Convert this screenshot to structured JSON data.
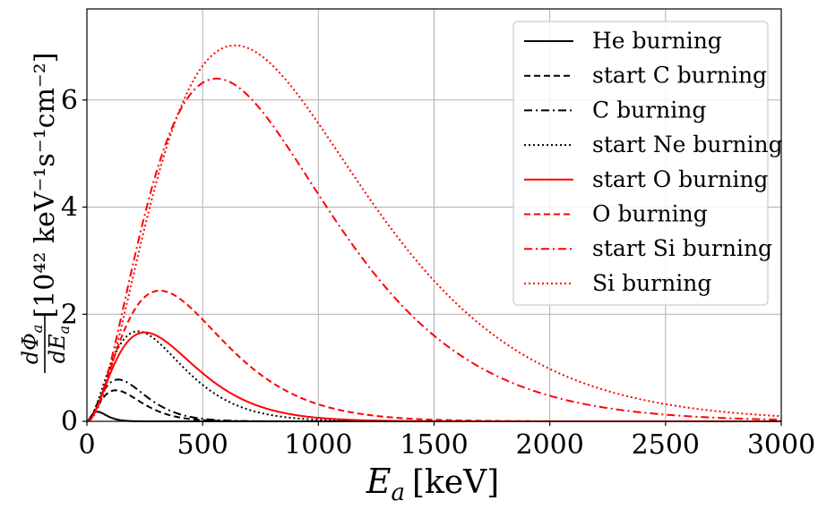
{
  "chart_data": {
    "type": "line",
    "xlabel": {
      "symbol": "E",
      "sub": "a",
      "unit": "[keV]"
    },
    "ylabel": {
      "num": "dΦ",
      "num_sub": "a",
      "den": "dE",
      "den_sub": "a",
      "unit": "[10⁴² keV⁻¹s⁻¹cm⁻²]"
    },
    "xlim": [
      0,
      3000
    ],
    "ylim": [
      0,
      7.7
    ],
    "x_ticks": [
      0,
      500,
      1000,
      1500,
      2000,
      2500,
      3000
    ],
    "y_ticks": [
      0,
      2,
      4,
      6
    ],
    "x_tick_labels": [
      "0",
      "500",
      "1000",
      "1500",
      "2000",
      "2500",
      "3000"
    ],
    "y_tick_labels": [
      "0",
      "2",
      "4",
      "6"
    ],
    "grid": true,
    "legend_position": "top-right",
    "series": [
      {
        "name": "He burning",
        "color": "#000000",
        "dash": "solid",
        "peak_x": 45,
        "peak_y": 0.18,
        "k": 2.0
      },
      {
        "name": "start C burning",
        "color": "#000000",
        "dash": "dashed",
        "peak_x": 125,
        "peak_y": 0.58,
        "k": 2.0
      },
      {
        "name": "C burning",
        "color": "#000000",
        "dash": "dashdot",
        "peak_x": 135,
        "peak_y": 0.78,
        "k": 2.0
      },
      {
        "name": "start Ne burning",
        "color": "#000000",
        "dash": "dotted",
        "peak_x": 220,
        "peak_y": 1.68,
        "k": 2.0
      },
      {
        "name": "start O burning",
        "color": "#ff0000",
        "dash": "solid",
        "peak_x": 250,
        "peak_y": 1.66,
        "k": 2.0
      },
      {
        "name": "O burning",
        "color": "#ff0000",
        "dash": "dashed",
        "peak_x": 315,
        "peak_y": 2.44,
        "k": 2.0
      },
      {
        "name": "start Si burning",
        "color": "#ff0000",
        "dash": "dashdot",
        "peak_x": 560,
        "peak_y": 6.4,
        "k": 2.0
      },
      {
        "name": "Si burning",
        "color": "#ff0000",
        "dash": "dotted",
        "peak_x": 640,
        "peak_y": 7.02,
        "k": 2.0
      }
    ]
  }
}
